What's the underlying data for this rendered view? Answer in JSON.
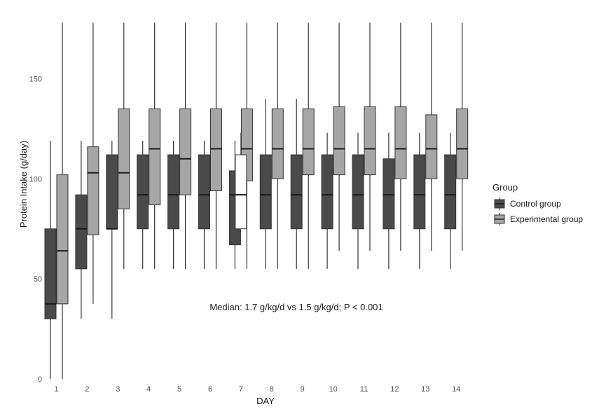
{
  "chart_data": {
    "type": "boxplot",
    "xlabel": "DAY",
    "ylabel": "Protein Intake (g/day)",
    "ylim": [
      0,
      178
    ],
    "yticks": [
      0,
      50,
      100,
      150
    ],
    "categories": [
      "1",
      "2",
      "3",
      "4",
      "5",
      "6",
      "7",
      "8",
      "9",
      "10",
      "11",
      "12",
      "13",
      "14"
    ],
    "grid": false,
    "legend": {
      "title": "Group",
      "position": "right",
      "entries": [
        {
          "label": "Control group",
          "color": "#4a4a4a"
        },
        {
          "label": "Experimental group",
          "color": "#a6a6a6"
        }
      ]
    },
    "annotation": "Median: 1.7 g/kg/d vs 1.5 g/kg/d; P < 0.001",
    "series": [
      {
        "name": "Control group",
        "color": "#4a4a4a",
        "boxes": [
          {
            "min": 0,
            "q1": 30,
            "median": 37.5,
            "q3": 75,
            "max": 119
          },
          {
            "min": 30,
            "q1": 55,
            "median": 75,
            "q3": 92,
            "max": 119
          },
          {
            "min": 30,
            "q1": 75,
            "median": 75,
            "q3": 112,
            "max": 119
          },
          {
            "min": 55,
            "q1": 75,
            "median": 92,
            "q3": 112,
            "max": 119
          },
          {
            "min": 55,
            "q1": 75,
            "median": 92,
            "q3": 112,
            "max": 119
          },
          {
            "min": 55,
            "q1": 75,
            "median": 92,
            "q3": 112,
            "max": 119
          },
          {
            "min": 55,
            "q1": 67,
            "median": 92,
            "q3": 104,
            "max": 119
          },
          {
            "min": 55,
            "q1": 75,
            "median": 92,
            "q3": 112,
            "max": 140
          },
          {
            "min": 55,
            "q1": 75,
            "median": 92,
            "q3": 112,
            "max": 140
          },
          {
            "min": 55,
            "q1": 75,
            "median": 92,
            "q3": 112,
            "max": 123
          },
          {
            "min": 55,
            "q1": 75,
            "median": 92,
            "q3": 112,
            "max": 123
          },
          {
            "min": 55,
            "q1": 75,
            "median": 92,
            "q3": 110,
            "max": 123
          },
          {
            "min": 55,
            "q1": 75,
            "median": 92,
            "q3": 112,
            "max": 123
          },
          {
            "min": 55,
            "q1": 75,
            "median": 92,
            "q3": 112,
            "max": 123
          }
        ]
      },
      {
        "name": "Experimental group",
        "color": "#a6a6a6",
        "boxes": [
          {
            "min": 0,
            "q1": 37.5,
            "median": 64,
            "q3": 102,
            "max": 178
          },
          {
            "min": 37.5,
            "q1": 72,
            "median": 103,
            "q3": 116,
            "max": 178
          },
          {
            "min": 55,
            "q1": 85,
            "median": 103,
            "q3": 135,
            "max": 178
          },
          {
            "min": 55,
            "q1": 87,
            "median": 115,
            "q3": 135,
            "max": 178
          },
          {
            "min": 55,
            "q1": 92,
            "median": 110,
            "q3": 135,
            "max": 178
          },
          {
            "min": 55,
            "q1": 94,
            "median": 115,
            "q3": 135,
            "max": 178
          },
          {
            "min": 55,
            "q1": 99,
            "median": 115,
            "q3": 135,
            "max": 178
          },
          {
            "min": 55,
            "q1": 100,
            "median": 115,
            "q3": 135,
            "max": 178
          },
          {
            "min": 55,
            "q1": 102,
            "median": 115,
            "q3": 135,
            "max": 178
          },
          {
            "min": 64,
            "q1": 102,
            "median": 115,
            "q3": 136,
            "max": 178
          },
          {
            "min": 64,
            "q1": 102,
            "median": 115,
            "q3": 136,
            "max": 178
          },
          {
            "min": 64,
            "q1": 100,
            "median": 115,
            "q3": 136,
            "max": 178
          },
          {
            "min": 64,
            "q1": 100,
            "median": 115,
            "q3": 132,
            "max": 178
          },
          {
            "min": 64,
            "q1": 100,
            "median": 115,
            "q3": 135,
            "max": 178
          }
        ]
      }
    ],
    "highlight_box": {
      "label": "",
      "category": "7",
      "min": 75,
      "q1": 75,
      "median": 92,
      "q3": 112,
      "max": 123
    }
  }
}
